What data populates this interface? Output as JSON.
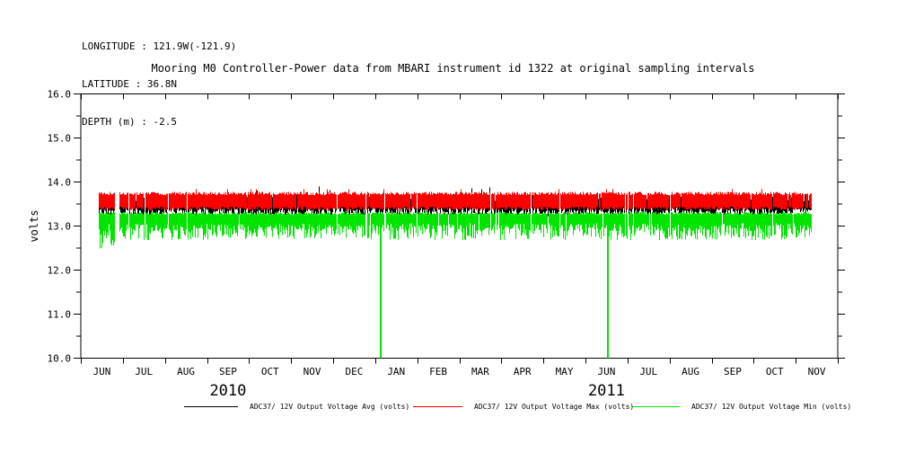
{
  "header": {
    "longitude": "LONGITUDE : 121.9W(-121.9)",
    "latitude": "LATITUDE : 36.8N",
    "depth": "DEPTH (m) : -2.5"
  },
  "title": "Mooring M0 Controller-Power data from MBARI instrument id 1322 at original sampling intervals",
  "chart_data": {
    "type": "line",
    "title": "Mooring M0 Controller-Power data from MBARI instrument id 1322 at original sampling intervals",
    "xlabel": "",
    "ylabel": "volts",
    "ylim": [
      10.0,
      16.0
    ],
    "ytick_major": 1.0,
    "ytick_minor": 0.5,
    "ytick_labels": [
      "16.0",
      "15.0",
      "14.0",
      "13.0",
      "12.0",
      "11.0",
      "10.0"
    ],
    "grid": false,
    "legend_position": "bottom",
    "x_month_labels": [
      "JUN",
      "JUL",
      "AUG",
      "SEP",
      "OCT",
      "NOV",
      "DEC",
      "JAN",
      "FEB",
      "MAR",
      "APR",
      "MAY",
      "JUN",
      "JUL",
      "AUG",
      "SEP",
      "OCT",
      "NOV"
    ],
    "year_labels": [
      {
        "label": "2010",
        "month_span": [
          0,
          7
        ]
      },
      {
        "label": "2011",
        "month_span": [
          7,
          18
        ]
      }
    ],
    "data_start_month": 0.42,
    "data_end_month": 17.35,
    "gaps": [
      {
        "month_frac": 0.85,
        "width_months": 0.1
      }
    ],
    "series": [
      {
        "name": "ADC37/ 12V Output Voltage Avg (volts)",
        "color": "#000000",
        "band_top": [
          13.56,
          13.73
        ],
        "band_bottom": [
          13.22,
          13.42
        ],
        "typical_value": 13.45
      },
      {
        "name": "ADC37/ 12V Output Voltage Max (volts)",
        "color": "#ff0000",
        "band_top": [
          13.7,
          13.78
        ],
        "band_bottom": [
          13.36,
          13.44
        ],
        "typical_value": 13.6
      },
      {
        "name": "ADC37/ 12V Output Voltage Min (volts)",
        "color": "#00e400",
        "band_top": [
          13.26,
          13.32
        ],
        "band_bottom": [
          12.88,
          13.06
        ],
        "spike_bottom": [
          12.68,
          12.86
        ],
        "typical_value": 13.0,
        "dropouts": [
          {
            "month_frac": 7.13,
            "value": 10.0
          },
          {
            "month_frac": 12.53,
            "value": 10.0
          }
        ]
      }
    ]
  }
}
